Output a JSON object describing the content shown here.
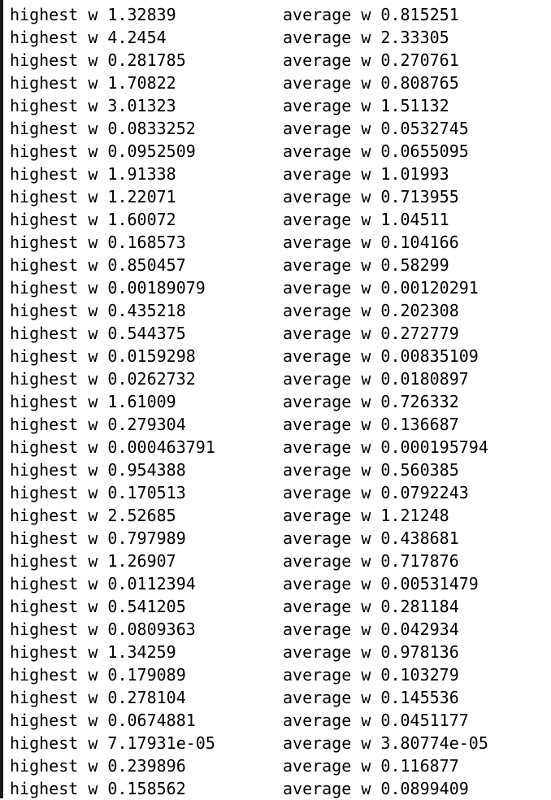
{
  "terminal": {
    "rows": [
      {
        "left": "highest w 1.32839",
        "right": "average w 0.815251"
      },
      {
        "left": "highest w 4.2454",
        "right": "average w 2.33305"
      },
      {
        "left": "highest w 0.281785",
        "right": "average w 0.270761"
      },
      {
        "left": "highest w 1.70822",
        "right": "average w 0.808765"
      },
      {
        "left": "highest w 3.01323",
        "right": "average w 1.51132"
      },
      {
        "left": "highest w 0.0833252",
        "right": "average w 0.0532745"
      },
      {
        "left": "highest w 0.0952509",
        "right": "average w 0.0655095"
      },
      {
        "left": "highest w 1.91338",
        "right": "average w 1.01993"
      },
      {
        "left": "highest w 1.22071",
        "right": "average w 0.713955"
      },
      {
        "left": "highest w 1.60072",
        "right": "average w 1.04511"
      },
      {
        "left": "highest w 0.168573",
        "right": "average w 0.104166"
      },
      {
        "left": "highest w 0.850457",
        "right": "average w 0.58299"
      },
      {
        "left": "highest w 0.00189079",
        "right": "average w 0.00120291"
      },
      {
        "left": "highest w 0.435218",
        "right": "average w 0.202308"
      },
      {
        "left": "highest w 0.544375",
        "right": "average w 0.272779"
      },
      {
        "left": "highest w 0.0159298",
        "right": "average w 0.00835109"
      },
      {
        "left": "highest w 0.0262732",
        "right": "average w 0.0180897"
      },
      {
        "left": "highest w 1.61009",
        "right": "average w 0.726332"
      },
      {
        "left": "highest w 0.279304",
        "right": "average w 0.136687"
      },
      {
        "left": "highest w 0.000463791",
        "right": "average w 0.000195794"
      },
      {
        "left": "highest w 0.954388",
        "right": "average w 0.560385"
      },
      {
        "left": "highest w 0.170513",
        "right": "average w 0.0792243"
      },
      {
        "left": "highest w 2.52685",
        "right": "average w 1.21248"
      },
      {
        "left": "highest w 0.797989",
        "right": "average w 0.438681"
      },
      {
        "left": "highest w 1.26907",
        "right": "average w 0.717876"
      },
      {
        "left": "highest w 0.0112394",
        "right": "average w 0.00531479"
      },
      {
        "left": "highest w 0.541205",
        "right": "average w 0.281184"
      },
      {
        "left": "highest w 0.0809363",
        "right": "average w 0.042934"
      },
      {
        "left": "highest w 1.34259",
        "right": "average w 0.978136"
      },
      {
        "left": "highest w 0.179089",
        "right": "average w 0.103279"
      },
      {
        "left": "highest w 0.278104",
        "right": "average w 0.145536"
      },
      {
        "left": "highest w 0.0674881",
        "right": "average w 0.0451177"
      },
      {
        "left": "highest w 7.17931e-05",
        "right": "average w 3.80774e-05"
      },
      {
        "left": "highest w 0.239896",
        "right": "average w 0.116877"
      },
      {
        "left": "highest w 0.158562",
        "right": "average w 0.0899409"
      }
    ]
  }
}
